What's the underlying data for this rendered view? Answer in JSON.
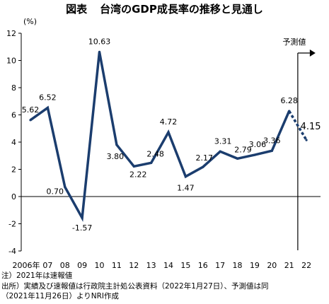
{
  "figure": {
    "label": "図表",
    "title": "台湾のGDP成長率の推移と見通し"
  },
  "chart_data": {
    "type": "line",
    "unit": "(%)",
    "ylim": [
      -4,
      12
    ],
    "yticks": [
      12,
      10,
      8,
      6,
      4,
      2,
      0,
      -2,
      -4
    ],
    "grid": false,
    "categories": [
      "2006年",
      "07",
      "08",
      "09",
      "10",
      "11",
      "12",
      "13",
      "14",
      "15",
      "16",
      "17",
      "18",
      "19",
      "20",
      "21",
      "22"
    ],
    "x_tick_labels": [
      "2006年",
      "07",
      "08",
      "09",
      "10",
      "11",
      "12",
      "13",
      "14",
      "15",
      "16",
      "17",
      "18",
      "19",
      "20",
      "21",
      "22"
    ],
    "series": [
      {
        "values": [
          5.62,
          6.52,
          0.7,
          -1.57,
          10.63,
          3.8,
          2.22,
          2.48,
          4.72,
          1.47,
          2.17,
          3.31,
          2.79,
          3.06,
          3.36,
          6.28,
          null
        ],
        "style": "solid",
        "color": "#1b3d6e"
      },
      {
        "values": [
          null,
          null,
          null,
          null,
          null,
          null,
          null,
          null,
          null,
          null,
          null,
          null,
          null,
          null,
          null,
          6.28,
          4.15
        ],
        "style": "dotted",
        "color": "#1b3d6e"
      }
    ],
    "data_labels": [
      {
        "category": "2006年",
        "text": "5.62"
      },
      {
        "category": "07",
        "text": "6.52"
      },
      {
        "category": "08",
        "text": "0.70"
      },
      {
        "category": "09",
        "text": "-1.57"
      },
      {
        "category": "10",
        "text": "10.63"
      },
      {
        "category": "11",
        "text": "3.80"
      },
      {
        "category": "12",
        "text": "2.22"
      },
      {
        "category": "13",
        "text": "2.48"
      },
      {
        "category": "14",
        "text": "4.72"
      },
      {
        "category": "15",
        "text": "1.47"
      },
      {
        "category": "16",
        "text": "2.17"
      },
      {
        "category": "17",
        "text": "3.31"
      },
      {
        "category": "18",
        "text": "2.79"
      },
      {
        "category": "19",
        "text": "3.06"
      },
      {
        "category": "20",
        "text": "3.36"
      },
      {
        "category": "21",
        "text": "6.28"
      },
      {
        "category": "22",
        "text": "4.15"
      }
    ],
    "forecast_marker": {
      "label": "予測値",
      "after_category": "21"
    }
  },
  "notes": {
    "note": "注）2021年は速報値",
    "source_line1": "出所）実績及び速報値は行政院主計処公表資料（2022年1月27日）、予測値は同",
    "source_line2": "（2021年11月26日）よりNRI作成"
  }
}
